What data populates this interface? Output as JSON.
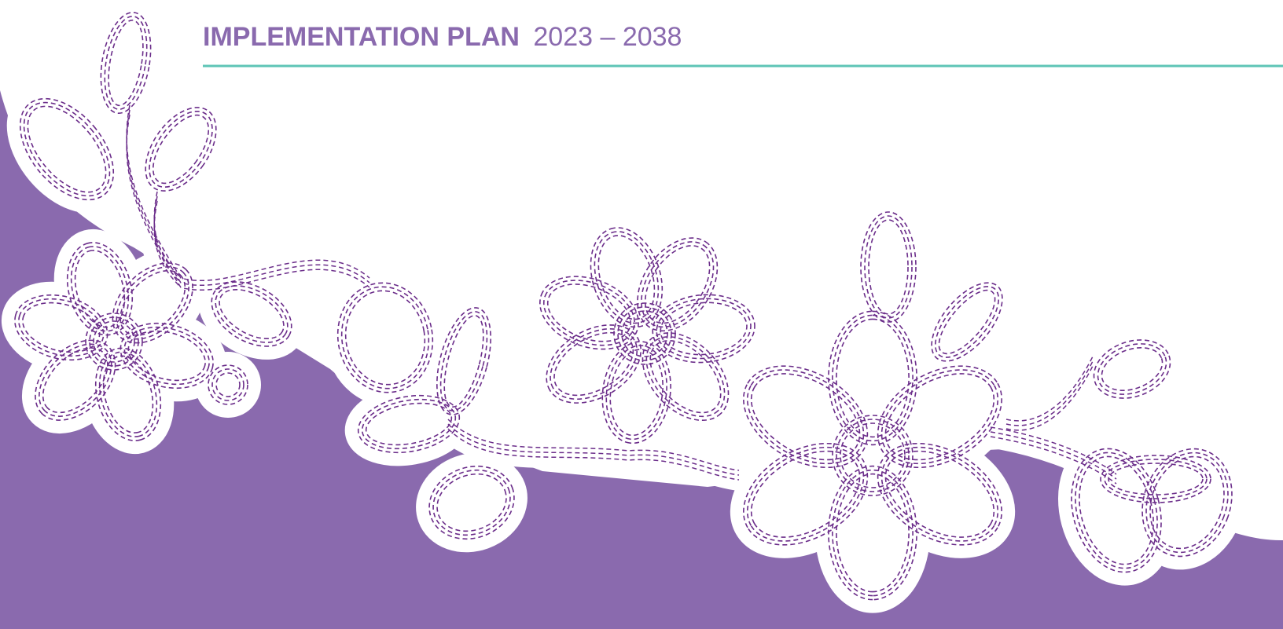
{
  "header": {
    "title": "IMPLEMENTATION PLAN",
    "years": "2023 – 2038"
  }
}
